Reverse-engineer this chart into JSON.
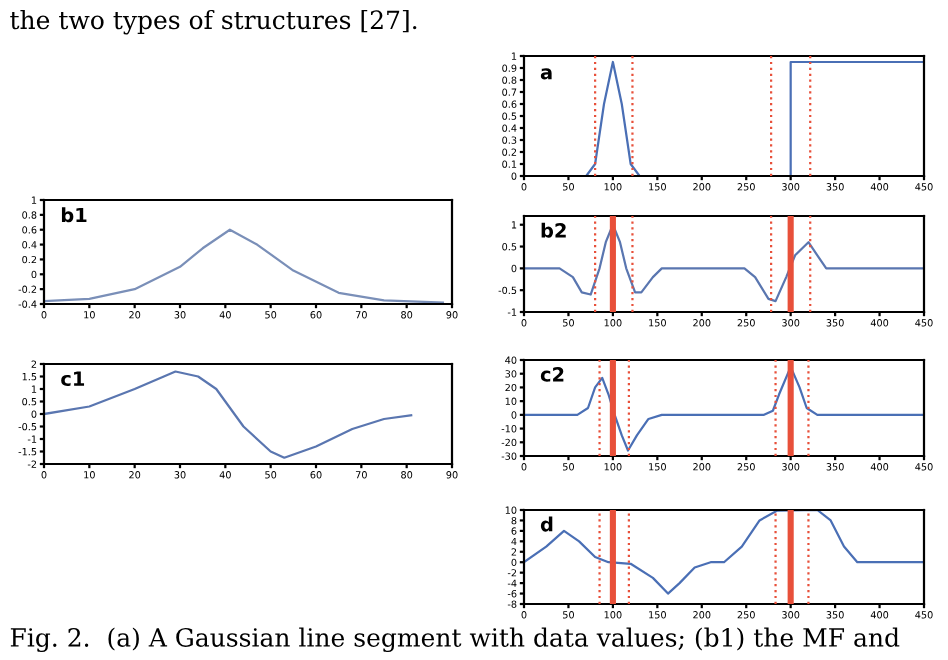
{
  "chart_data": [
    {
      "type": "line",
      "title": "a",
      "x": [
        0,
        70,
        80,
        90,
        100,
        110,
        120,
        130,
        300,
        300,
        450
      ],
      "series": [
        {
          "color": "#4a6fb5",
          "values": [
            0,
            0,
            0.1,
            0.6,
            0.95,
            0.6,
            0.1,
            0,
            0,
            0.95,
            0.95
          ]
        }
      ],
      "xlim": [
        0,
        450
      ],
      "xticks": [
        0,
        50,
        100,
        150,
        200,
        250,
        300,
        350,
        400,
        450
      ],
      "ylim": [
        0,
        1
      ],
      "yticks": [
        0,
        0.1,
        0.2,
        0.3,
        0.4,
        0.5,
        0.6,
        0.7,
        0.8,
        0.9,
        1
      ],
      "grid": false,
      "legend": false,
      "ref_lines": [
        {
          "axis": "x",
          "value": 80,
          "color": "#e8503a",
          "line_style": "dotted"
        },
        {
          "axis": "x",
          "value": 122,
          "color": "#e8503a",
          "line_style": "dotted"
        },
        {
          "axis": "x",
          "value": 278,
          "color": "#e8503a",
          "line_style": "dotted"
        },
        {
          "axis": "x",
          "value": 322,
          "color": "#e8503a",
          "line_style": "dotted"
        }
      ],
      "annotations": [
        "the two types of structures [27]."
      ]
    },
    {
      "type": "line",
      "title": "b1",
      "x": [
        0,
        10,
        20,
        30,
        35,
        41,
        47,
        55,
        65,
        75,
        88
      ],
      "series": [
        {
          "color": "#7a8fb8",
          "values": [
            -0.36,
            -0.33,
            -0.2,
            0.1,
            0.35,
            0.6,
            0.4,
            0.05,
            -0.25,
            -0.35,
            -0.38
          ]
        }
      ],
      "xlim": [
        0,
        90
      ],
      "xticks": [
        0,
        10,
        20,
        30,
        40,
        50,
        60,
        70,
        80,
        90
      ],
      "ylim": [
        -0.4,
        1
      ],
      "yticks": [
        -0.4,
        -0.2,
        0,
        0.2,
        0.4,
        0.6,
        0.8,
        1
      ],
      "grid": false,
      "legend": false
    },
    {
      "type": "line",
      "title": "b2",
      "x": [
        0,
        40,
        55,
        65,
        75,
        85,
        92,
        100,
        108,
        115,
        125,
        132,
        145,
        155,
        248,
        260,
        275,
        283,
        295,
        305,
        320,
        330,
        340,
        450
      ],
      "series": [
        {
          "color": "#5a76b0",
          "values": [
            0,
            0,
            -0.2,
            -0.55,
            -0.6,
            0,
            0.6,
            1.0,
            0.6,
            0,
            -0.55,
            -0.55,
            -0.2,
            0,
            0,
            -0.2,
            -0.7,
            -0.75,
            -0.2,
            0.3,
            0.6,
            0.3,
            0,
            0
          ]
        }
      ],
      "xlim": [
        0,
        450
      ],
      "xticks": [
        0,
        50,
        100,
        150,
        200,
        250,
        300,
        350,
        400,
        450
      ],
      "ylim": [
        -1,
        1.2
      ],
      "yticks": [
        -1,
        -0.5,
        0,
        0.5,
        1
      ],
      "grid": false,
      "legend": false,
      "ref_lines": [
        {
          "axis": "x",
          "value": 100,
          "color": "#e8503a",
          "line_style": "solid"
        },
        {
          "axis": "x",
          "value": 300,
          "color": "#e8503a",
          "line_style": "solid"
        },
        {
          "axis": "x",
          "value": 80,
          "color": "#e8503a",
          "line_style": "dotted"
        },
        {
          "axis": "x",
          "value": 122,
          "color": "#e8503a",
          "line_style": "dotted"
        },
        {
          "axis": "x",
          "value": 278,
          "color": "#e8503a",
          "line_style": "dotted"
        },
        {
          "axis": "x",
          "value": 322,
          "color": "#e8503a",
          "line_style": "dotted"
        }
      ]
    },
    {
      "type": "line",
      "title": "c1",
      "x": [
        0,
        10,
        20,
        29,
        34,
        38,
        44,
        50,
        53,
        60,
        68,
        75,
        81
      ],
      "series": [
        {
          "color": "#5a76b0",
          "values": [
            0,
            0.3,
            1,
            1.7,
            1.5,
            1.0,
            -0.5,
            -1.5,
            -1.75,
            -1.3,
            -0.6,
            -0.2,
            -0.05
          ]
        }
      ],
      "xlim": [
        0,
        90
      ],
      "xticks": [
        0,
        10,
        20,
        30,
        40,
        50,
        60,
        70,
        80,
        90
      ],
      "ylim": [
        -2,
        2
      ],
      "yticks": [
        -2,
        -1.5,
        -1,
        -0.5,
        0,
        0.5,
        1,
        1.5,
        2
      ],
      "grid": false,
      "legend": false
    },
    {
      "type": "line",
      "title": "c2",
      "x": [
        0,
        60,
        72,
        80,
        88,
        95,
        102,
        110,
        117,
        127,
        140,
        155,
        270,
        280,
        287,
        300,
        310,
        318,
        330,
        450
      ],
      "series": [
        {
          "color": "#4a6fb5",
          "values": [
            0,
            0,
            5,
            20,
            27,
            15,
            0,
            -15,
            -26,
            -15,
            -3,
            0,
            0,
            3,
            15,
            35,
            20,
            5,
            0,
            0
          ]
        }
      ],
      "xlim": [
        0,
        450
      ],
      "xticks": [
        0,
        50,
        100,
        150,
        200,
        250,
        300,
        350,
        400,
        450
      ],
      "ylim": [
        -30,
        40
      ],
      "yticks": [
        -30,
        -20,
        -10,
        0,
        10,
        20,
        30,
        40
      ],
      "grid": false,
      "legend": false,
      "ref_lines": [
        {
          "axis": "x",
          "value": 100,
          "color": "#e8503a",
          "line_style": "solid"
        },
        {
          "axis": "x",
          "value": 300,
          "color": "#e8503a",
          "line_style": "solid"
        },
        {
          "axis": "x",
          "value": 85,
          "color": "#e8503a",
          "line_style": "dotted"
        },
        {
          "axis": "x",
          "value": 118,
          "color": "#e8503a",
          "line_style": "dotted"
        },
        {
          "axis": "x",
          "value": 283,
          "color": "#e8503a",
          "line_style": "dotted"
        },
        {
          "axis": "x",
          "value": 320,
          "color": "#e8503a",
          "line_style": "dotted"
        }
      ]
    },
    {
      "type": "line",
      "title": "d",
      "x": [
        0,
        25,
        45,
        62,
        80,
        95,
        120,
        145,
        162,
        175,
        192,
        210,
        225,
        245,
        265,
        285,
        330,
        345,
        360,
        375,
        450
      ],
      "series": [
        {
          "color": "#4a6fb5",
          "values": [
            0,
            3,
            6,
            4,
            1,
            0,
            -0.3,
            -3,
            -6,
            -4,
            -1,
            0,
            0,
            3,
            8,
            9.9,
            10,
            8,
            3,
            0,
            0
          ]
        }
      ],
      "xlim": [
        0,
        450
      ],
      "xticks": [
        0,
        50,
        100,
        150,
        200,
        250,
        300,
        350,
        400,
        450
      ],
      "ylim": [
        -8,
        10
      ],
      "yticks": [
        -8,
        -6,
        -4,
        -2,
        0,
        2,
        4,
        6,
        8,
        10
      ],
      "grid": false,
      "legend": false,
      "ref_lines": [
        {
          "axis": "x",
          "value": 100,
          "color": "#e8503a",
          "line_style": "solid"
        },
        {
          "axis": "x",
          "value": 300,
          "color": "#e8503a",
          "line_style": "solid"
        },
        {
          "axis": "x",
          "value": 85,
          "color": "#e8503a",
          "line_style": "dotted"
        },
        {
          "axis": "x",
          "value": 118,
          "color": "#e8503a",
          "line_style": "dotted"
        },
        {
          "axis": "x",
          "value": 283,
          "color": "#e8503a",
          "line_style": "dotted"
        },
        {
          "axis": "x",
          "value": 320,
          "color": "#e8503a",
          "line_style": "dotted"
        }
      ],
      "annotations": [
        "Fig. 2.  (a) A Gaussian line segment with data values; (b1) the MF and"
      ]
    }
  ]
}
